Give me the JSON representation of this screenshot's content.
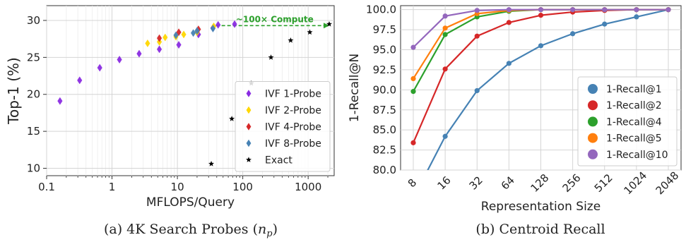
{
  "chart_data": [
    {
      "type": "scatter",
      "caption_prefix": "(a) 4K Search Probes (",
      "caption_var": "n",
      "caption_sub": "p",
      "caption_suffix": ")",
      "xlabel": "MFLOPS/Query",
      "ylabel": "Top-1 (%)",
      "xscale": "log",
      "xlim": [
        0.1,
        2500
      ],
      "ylim": [
        9,
        32
      ],
      "xticks": [
        0.1,
        1,
        10,
        100,
        1000
      ],
      "xtick_labels": [
        "0.1",
        "1",
        "10",
        "100",
        "1000"
      ],
      "yticks": [
        10,
        15,
        20,
        25,
        30
      ],
      "yticks_labels": [
        "10",
        "15",
        "20",
        "25",
        "30"
      ],
      "grid": true,
      "legend_position": "lower-right",
      "annotation": {
        "text": "~100× Compute",
        "from": [
          37,
          29.3
        ],
        "to": [
          2100,
          29.3
        ],
        "color": "#2ca02c"
      },
      "series": [
        {
          "name": "IVF 1-Probe",
          "color": "#8a2be2",
          "marker": "diamond",
          "points": [
            [
              0.16,
              19.1
            ],
            [
              0.32,
              21.9
            ],
            [
              0.65,
              23.6
            ],
            [
              1.3,
              24.7
            ],
            [
              2.6,
              25.5
            ],
            [
              5.3,
              26.1
            ],
            [
              10.5,
              26.7
            ],
            [
              21,
              28.1
            ],
            [
              35,
              29.0
            ],
            [
              42,
              29.4
            ],
            [
              75,
              29.5
            ]
          ]
        },
        {
          "name": "IVF 2-Probe",
          "color": "#ffd700",
          "marker": "diamond",
          "points": [
            [
              3.5,
              26.9
            ],
            [
              5.3,
              27.1
            ],
            [
              6.5,
              27.7
            ],
            [
              9.5,
              27.8
            ],
            [
              12.5,
              28.1
            ],
            [
              20,
              28.4
            ],
            [
              36,
              29.2
            ]
          ]
        },
        {
          "name": "IVF 4-Probe",
          "color": "#d62728",
          "marker": "diamond",
          "points": [
            [
              5.3,
              27.6
            ],
            [
              10.5,
              28.4
            ],
            [
              21,
              28.8
            ]
          ]
        },
        {
          "name": "IVF 8-Probe",
          "color": "#4682b4",
          "marker": "diamond",
          "points": [
            [
              9.5,
              28.0
            ],
            [
              17.5,
              28.3
            ],
            [
              20,
              28.6
            ],
            [
              35,
              28.9
            ]
          ]
        },
        {
          "name": "Exact",
          "color": "#000000",
          "marker": "star",
          "points": [
            [
              33,
              10.6
            ],
            [
              68,
              16.7
            ],
            [
              135,
              21.5
            ],
            [
              270,
              25.0
            ],
            [
              540,
              27.3
            ],
            [
              1060,
              28.4
            ],
            [
              2100,
              29.5
            ]
          ]
        }
      ]
    },
    {
      "type": "line",
      "caption": "(b) Centroid Recall",
      "xlabel": "Representation Size",
      "ylabel": "1-Recall@N",
      "categories": [
        "8",
        "16",
        "32",
        "64",
        "128",
        "256",
        "512",
        "1024",
        "2048"
      ],
      "ylim": [
        80.0,
        100.5
      ],
      "yticks": [
        80.0,
        82.5,
        85.0,
        87.5,
        90.0,
        92.5,
        95.0,
        97.5,
        100.0
      ],
      "yticks_labels": [
        "80.0",
        "82.5",
        "85.0",
        "87.5",
        "90.0",
        "92.5",
        "95.0",
        "97.5",
        "100.0"
      ],
      "grid": true,
      "legend_position": "lower-right",
      "series": [
        {
          "name": "1-Recall@1",
          "color": "#4682b4",
          "values": [
            76.5,
            84.2,
            89.9,
            93.3,
            95.5,
            97.0,
            98.2,
            99.1,
            100.0
          ]
        },
        {
          "name": "1-Recall@2",
          "color": "#d62728",
          "values": [
            83.4,
            92.6,
            96.7,
            98.4,
            99.3,
            99.7,
            99.9,
            100.0,
            100.0
          ]
        },
        {
          "name": "1-Recall@4",
          "color": "#2ca02c",
          "values": [
            89.8,
            96.9,
            99.1,
            99.8,
            100.0,
            100.0,
            100.0,
            100.0,
            100.0
          ]
        },
        {
          "name": "1-Recall@5",
          "color": "#ff7f0e",
          "values": [
            91.4,
            97.7,
            99.5,
            99.9,
            100.0,
            100.0,
            100.0,
            100.0,
            100.0
          ]
        },
        {
          "name": "1-Recall@10",
          "color": "#9467bd",
          "values": [
            95.3,
            99.2,
            99.9,
            100.0,
            100.0,
            100.0,
            100.0,
            100.0,
            100.0
          ]
        }
      ]
    }
  ]
}
